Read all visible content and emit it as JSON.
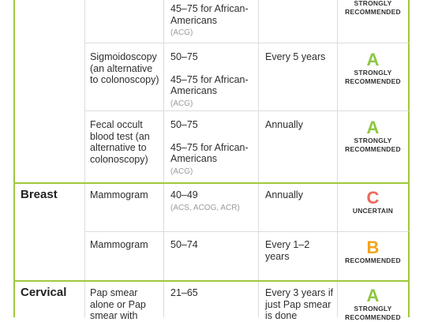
{
  "rows": [
    {
      "test_text": "",
      "age": "45–75 for African-Americans",
      "age_source": "(ACG)",
      "frequency": "",
      "grade_letter": "",
      "grade_text": "STRONGLY RECOMMENDED"
    },
    {
      "test_text": "Sigmoidoscopy (an alternative to colonoscopy)",
      "age": "50–75",
      "age_extra": "45–75 for African-Americans",
      "age_source": "(ACG)",
      "frequency": "Every 5 years",
      "grade_letter": "A",
      "grade_text": "STRONGLY RECOMMENDED"
    },
    {
      "test_text": "Fecal occult blood test (an alternative to colonoscopy)",
      "age": "50–75",
      "age_extra": "45–75 for African-Americans",
      "age_source": "(ACG)",
      "frequency": "Annually",
      "grade_letter": "A",
      "grade_text": "STRONGLY RECOMMENDED"
    },
    {
      "category": "Breast",
      "test_text": "Mammogram",
      "age": "40–49",
      "age_source": "(ACS, ACOG, ACR)",
      "frequency": "Annually",
      "grade_letter": "C",
      "grade_text": "UNCERTAIN"
    },
    {
      "test_text": "Mammogram",
      "age": "50–74",
      "frequency": "Every 1–2 years",
      "grade_letter": "B",
      "grade_text": "RECOMMENDED"
    },
    {
      "category": "Cervical",
      "test_text": "Pap smear alone or Pap smear with",
      "age": "21–65",
      "frequency": "Every 3 years if just Pap smear is done",
      "grade_letter": "A",
      "grade_text": "STRONGLY RECOMMENDED"
    }
  ],
  "colors": {
    "border_green": "#9fc93c",
    "grade_a": "#8cc63f",
    "grade_b": "#f2a51a",
    "grade_c": "#f0685a"
  }
}
